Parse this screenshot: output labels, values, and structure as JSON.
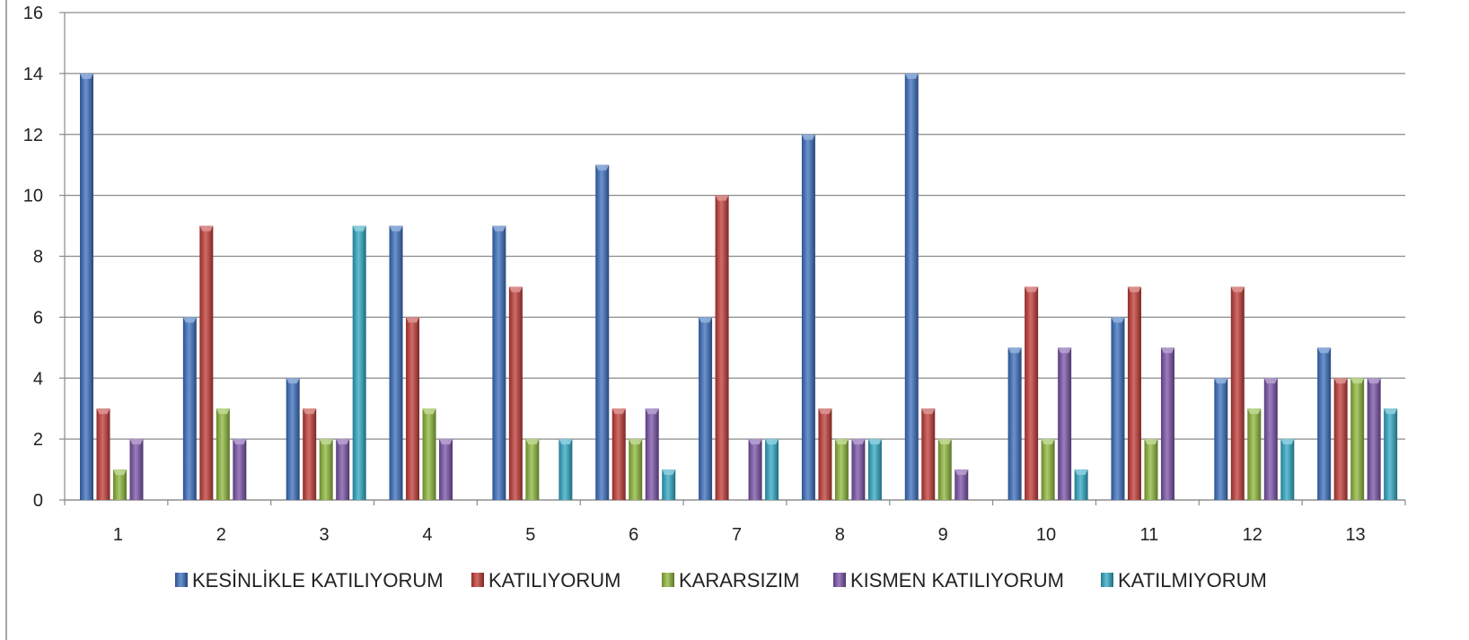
{
  "chart_data": {
    "type": "bar",
    "categories": [
      "1",
      "2",
      "3",
      "4",
      "5",
      "6",
      "7",
      "8",
      "9",
      "10",
      "11",
      "12",
      "13"
    ],
    "series": [
      {
        "name": "KESİNLİKLE KATILIYORUM",
        "color": "#3A6FBF",
        "values": [
          14,
          6,
          4,
          9,
          9,
          11,
          6,
          12,
          14,
          5,
          6,
          4,
          5
        ]
      },
      {
        "name": "KATILIYORUM",
        "color": "#C23A36",
        "values": [
          3,
          9,
          3,
          6,
          7,
          3,
          10,
          3,
          3,
          7,
          7,
          7,
          4
        ]
      },
      {
        "name": "KARARSIZIM",
        "color": "#8DB83A",
        "values": [
          1,
          3,
          2,
          3,
          2,
          2,
          0,
          2,
          2,
          2,
          2,
          3,
          4
        ]
      },
      {
        "name": "KISMEN KATILIYORUM",
        "color": "#7A52A8",
        "values": [
          2,
          2,
          2,
          2,
          0,
          3,
          2,
          2,
          1,
          5,
          5,
          4,
          4
        ]
      },
      {
        "name": "KATILMIYORUM",
        "color": "#2FA8C4",
        "values": [
          0,
          0,
          9,
          0,
          2,
          1,
          2,
          2,
          0,
          1,
          0,
          2,
          3
        ]
      }
    ],
    "ylim": [
      0,
      16
    ],
    "yticks": [
      "0",
      "2",
      "4",
      "6",
      "8",
      "10",
      "12",
      "14",
      "16"
    ],
    "grid": true,
    "legend_position": "bottom"
  }
}
